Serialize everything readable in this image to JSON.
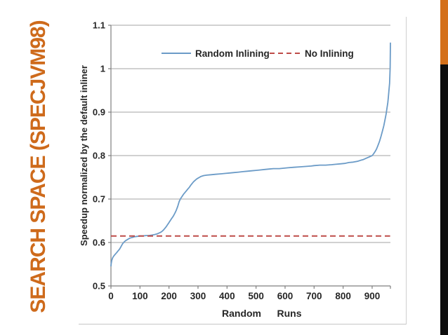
{
  "slide": {
    "title": "SEARCH SPACE (SPECJVM98)",
    "title_color": "#CE6A1B",
    "background": "#FFFFFF"
  },
  "decor": {
    "right_bar_orange_color": "#D4701A",
    "right_bar_black_color": "#0D0D0D"
  },
  "chart_data": {
    "type": "line",
    "title": "",
    "xlabel": "Random Runs",
    "xlabel_parts": [
      "Random",
      "Runs"
    ],
    "ylabel": "Speedup normalized by the default inliner",
    "xlim": [
      0,
      963
    ],
    "ylim": [
      0.5,
      1.1
    ],
    "x_ticks": [
      0,
      100,
      200,
      300,
      400,
      500,
      600,
      700,
      800,
      900
    ],
    "x_tick_labels": [
      "0",
      "100",
      "200",
      "300",
      "400",
      "500",
      "600",
      "700",
      "800",
      "900"
    ],
    "y_ticks": [
      0.5,
      0.6,
      0.7,
      0.8,
      0.9,
      1.0,
      1.1
    ],
    "y_tick_labels": [
      "0.5",
      "0.6",
      "0.7",
      "0.8",
      "0.9",
      "1",
      "1.1"
    ],
    "grid": "horizontal",
    "grid_color": "#A3A3A3",
    "axis_color": "#7F7F7F",
    "text_color": "#262626",
    "legend_position": "top-inside",
    "legend_entries": [
      "Random Inlining",
      "No Inlining"
    ],
    "series": [
      {
        "name": "Random Inlining",
        "style": "solid",
        "color": "#6B9BC7",
        "points": [
          [
            0,
            0.545
          ],
          [
            1,
            0.552
          ],
          [
            3,
            0.559
          ],
          [
            6,
            0.565
          ],
          [
            10,
            0.569
          ],
          [
            15,
            0.573
          ],
          [
            20,
            0.577
          ],
          [
            25,
            0.581
          ],
          [
            30,
            0.585
          ],
          [
            35,
            0.591
          ],
          [
            40,
            0.597
          ],
          [
            45,
            0.601
          ],
          [
            50,
            0.604
          ],
          [
            55,
            0.606
          ],
          [
            60,
            0.608
          ],
          [
            65,
            0.61
          ],
          [
            70,
            0.611
          ],
          [
            75,
            0.612
          ],
          [
            80,
            0.613
          ],
          [
            90,
            0.614
          ],
          [
            100,
            0.615
          ],
          [
            110,
            0.615
          ],
          [
            120,
            0.616
          ],
          [
            130,
            0.616
          ],
          [
            140,
            0.617
          ],
          [
            150,
            0.618
          ],
          [
            160,
            0.62
          ],
          [
            170,
            0.623
          ],
          [
            175,
            0.625
          ],
          [
            180,
            0.628
          ],
          [
            185,
            0.632
          ],
          [
            190,
            0.636
          ],
          [
            195,
            0.641
          ],
          [
            200,
            0.646
          ],
          [
            205,
            0.651
          ],
          [
            210,
            0.656
          ],
          [
            215,
            0.661
          ],
          [
            220,
            0.667
          ],
          [
            225,
            0.674
          ],
          [
            230,
            0.683
          ],
          [
            235,
            0.694
          ],
          [
            240,
            0.701
          ],
          [
            245,
            0.706
          ],
          [
            250,
            0.711
          ],
          [
            255,
            0.715
          ],
          [
            260,
            0.719
          ],
          [
            265,
            0.723
          ],
          [
            270,
            0.727
          ],
          [
            275,
            0.732
          ],
          [
            280,
            0.736
          ],
          [
            285,
            0.74
          ],
          [
            290,
            0.743
          ],
          [
            295,
            0.746
          ],
          [
            300,
            0.748
          ],
          [
            305,
            0.75
          ],
          [
            310,
            0.752
          ],
          [
            315,
            0.753
          ],
          [
            320,
            0.754
          ],
          [
            330,
            0.755
          ],
          [
            345,
            0.756
          ],
          [
            360,
            0.757
          ],
          [
            380,
            0.758
          ],
          [
            395,
            0.759
          ],
          [
            410,
            0.76
          ],
          [
            425,
            0.761
          ],
          [
            440,
            0.762
          ],
          [
            455,
            0.763
          ],
          [
            470,
            0.764
          ],
          [
            485,
            0.765
          ],
          [
            500,
            0.766
          ],
          [
            515,
            0.767
          ],
          [
            530,
            0.768
          ],
          [
            545,
            0.769
          ],
          [
            560,
            0.77
          ],
          [
            580,
            0.77
          ],
          [
            595,
            0.771
          ],
          [
            610,
            0.772
          ],
          [
            630,
            0.773
          ],
          [
            650,
            0.774
          ],
          [
            670,
            0.775
          ],
          [
            690,
            0.776
          ],
          [
            700,
            0.777
          ],
          [
            720,
            0.778
          ],
          [
            740,
            0.778
          ],
          [
            760,
            0.779
          ],
          [
            775,
            0.78
          ],
          [
            790,
            0.781
          ],
          [
            805,
            0.782
          ],
          [
            820,
            0.784
          ],
          [
            835,
            0.785
          ],
          [
            850,
            0.787
          ],
          [
            860,
            0.789
          ],
          [
            870,
            0.791
          ],
          [
            880,
            0.794
          ],
          [
            890,
            0.797
          ],
          [
            900,
            0.8
          ],
          [
            905,
            0.804
          ],
          [
            910,
            0.809
          ],
          [
            915,
            0.815
          ],
          [
            920,
            0.823
          ],
          [
            925,
            0.832
          ],
          [
            930,
            0.843
          ],
          [
            935,
            0.855
          ],
          [
            940,
            0.868
          ],
          [
            944,
            0.881
          ],
          [
            948,
            0.895
          ],
          [
            951,
            0.908
          ],
          [
            954,
            0.922
          ],
          [
            956,
            0.935
          ],
          [
            958,
            0.95
          ],
          [
            960,
            0.966
          ],
          [
            961,
            0.983
          ],
          [
            962,
            1.002
          ],
          [
            962.5,
            1.03
          ],
          [
            963,
            1.06
          ]
        ]
      },
      {
        "name": "No Inlining",
        "style": "dashed-constant",
        "color": "#BE4B48",
        "value": 0.615
      }
    ]
  }
}
